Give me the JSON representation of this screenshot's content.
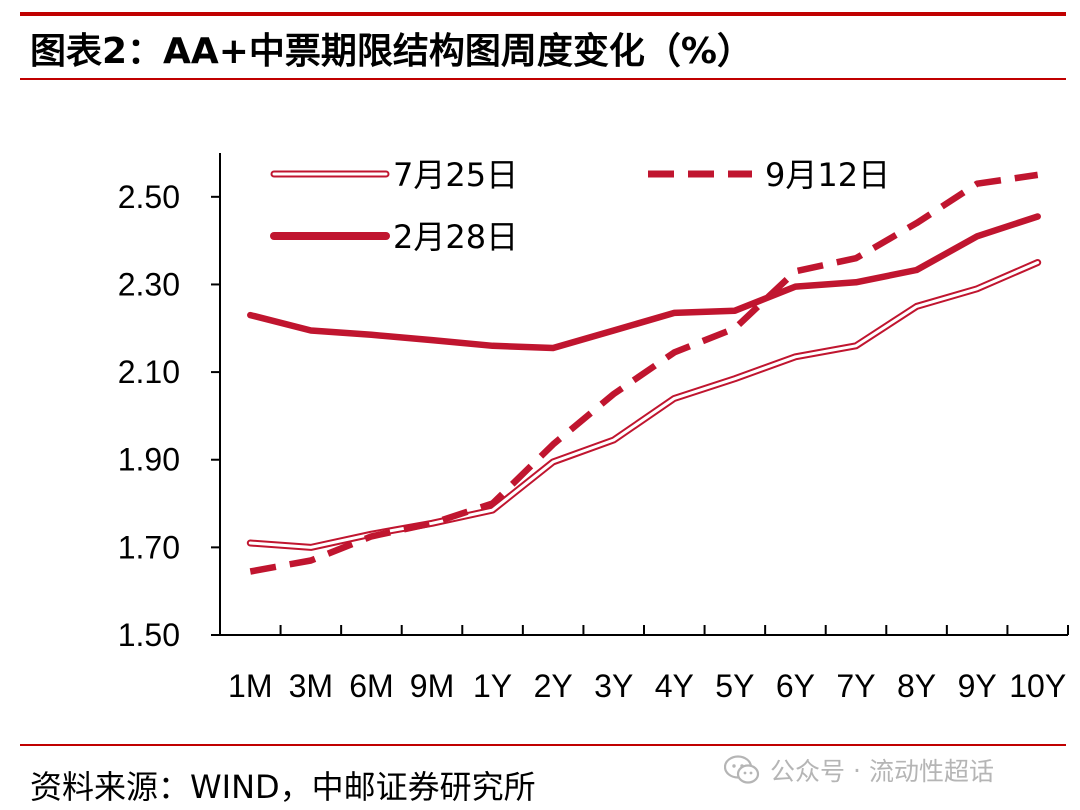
{
  "header": {
    "title": "图表2：AA+中票期限结构图周度变化（%）",
    "accent_color": "#c00000"
  },
  "footer": {
    "source": "资料来源：WIND，中邮证券研究所",
    "watermark_part1": "公众号",
    "watermark_sep": "·",
    "watermark_part2": "流动性超话",
    "watermark_icon": "wechat-icon"
  },
  "chart_data": {
    "type": "line",
    "title": "AA+中票期限结构图周度变化（%）",
    "xlabel": "",
    "ylabel": "",
    "categories": [
      "1M",
      "3M",
      "6M",
      "9M",
      "1Y",
      "2Y",
      "3Y",
      "4Y",
      "5Y",
      "6Y",
      "7Y",
      "8Y",
      "9Y",
      "10Y"
    ],
    "ylim": [
      1.5,
      2.6
    ],
    "yticks": [
      1.5,
      1.7,
      1.9,
      2.1,
      2.3,
      2.5
    ],
    "ytick_labels": [
      "1.50",
      "1.70",
      "1.90",
      "2.10",
      "2.30",
      "2.50"
    ],
    "grid": false,
    "legend_position": "top",
    "series": [
      {
        "name": "7月25日",
        "style": "double",
        "color": "#c0152f",
        "values": [
          1.71,
          1.7,
          1.73,
          1.755,
          1.785,
          1.895,
          1.945,
          2.04,
          2.085,
          2.135,
          2.16,
          2.25,
          2.29,
          2.35
        ]
      },
      {
        "name": "9月12日",
        "style": "dashed",
        "color": "#c0152f",
        "values": [
          1.645,
          1.67,
          1.725,
          1.755,
          1.8,
          1.935,
          2.05,
          2.145,
          2.2,
          2.33,
          2.36,
          2.44,
          2.53,
          2.55
        ]
      },
      {
        "name": "2月28日",
        "style": "solid-thick",
        "color": "#c0152f",
        "values": [
          2.23,
          2.195,
          2.185,
          2.173,
          2.16,
          2.155,
          2.195,
          2.235,
          2.24,
          2.295,
          2.305,
          2.333,
          2.41,
          2.455
        ]
      }
    ]
  }
}
